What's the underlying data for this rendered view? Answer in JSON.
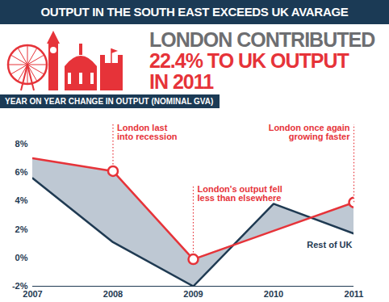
{
  "chart_data": {
    "type": "line",
    "title": "OUTPUT IN THE SOUTH EAST EXCEEDS UK AVARAGE",
    "headline": [
      "LONDON CONTRIBUTED",
      "22.4% TO UK OUTPUT",
      "IN 2011"
    ],
    "subtitle": "YEAR ON YEAR CHANGE IN OUTPUT (NOMINAL GVA)",
    "x": [
      2007,
      2008,
      2009,
      2010,
      2011
    ],
    "series": [
      {
        "color": "#e63339",
        "values": [
          7.0,
          6.1,
          -0.1,
          1.9,
          3.9
        ]
      },
      {
        "name": "Rest of UK",
        "color": "#1f3a52",
        "values": [
          5.6,
          1.1,
          -2.0,
          3.8,
          1.7
        ]
      }
    ],
    "xlim": [
      2007,
      2011
    ],
    "xticks": [
      2007,
      2008,
      2009,
      2010,
      2011
    ],
    "ylim": [
      -2,
      8
    ],
    "yticks": [
      {
        "value": -2,
        "label": "-2%"
      },
      {
        "value": 0,
        "label": "0%"
      },
      {
        "value": 2,
        "label": "2%"
      },
      {
        "value": 4,
        "label": "4%"
      },
      {
        "value": 6,
        "label": "6%"
      },
      {
        "value": 8,
        "label": "8%"
      }
    ],
    "grid": false,
    "annotations": [
      {
        "x": 2008,
        "text": "London last\ninto recession"
      },
      {
        "x": 2009,
        "text": "London's output fell\nless than elsewhere"
      },
      {
        "x": 2011,
        "text": "London once again\ngrowing faster"
      }
    ]
  }
}
